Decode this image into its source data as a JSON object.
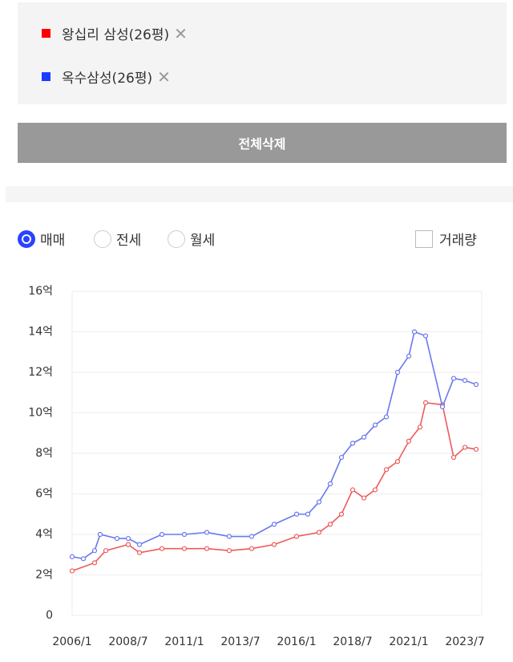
{
  "delete_all_button": "전체삭제",
  "deal_types": [
    "매매",
    "전세",
    "월세"
  ],
  "selected_deal_type": 0,
  "volume_checkbox": "거래량",
  "chart_data": {
    "type": "line",
    "xlim": [
      "2006/1",
      "2024/4"
    ],
    "xticks": [
      "2006/1",
      "2008/7",
      "2011/1",
      "2013/7",
      "2016/1",
      "2018/7",
      "2021/1",
      "2023/7"
    ],
    "ylim": [
      0,
      16
    ],
    "yticks": [
      0,
      {
        "value": 2,
        "label": "2억"
      },
      {
        "value": 4,
        "label": "4억"
      },
      {
        "value": 6,
        "label": "6억"
      },
      {
        "value": 8,
        "label": "8억"
      },
      {
        "value": 10,
        "label": "10억"
      },
      {
        "value": 12,
        "label": "12억"
      },
      {
        "value": 14,
        "label": "14억"
      },
      {
        "value": 16,
        "label": "16억"
      }
    ],
    "grid": true,
    "series": [
      {
        "name": "왕십리 삼성(26평)",
        "color": "#ee5a5a",
        "x": [
          "2006/1",
          "2007/1",
          "2007/7",
          "2008/7",
          "2009/1",
          "2010/1",
          "2011/1",
          "2012/1",
          "2013/1",
          "2014/1",
          "2015/1",
          "2016/1",
          "2017/1",
          "2017/7",
          "2018/1",
          "2018/7",
          "2019/1",
          "2019/7",
          "2020/1",
          "2020/7",
          "2021/1",
          "2021/7",
          "2021/10",
          "2022/7",
          "2023/1",
          "2023/7",
          "2024/1"
        ],
        "values": [
          2.2,
          2.6,
          3.2,
          3.5,
          3.1,
          3.3,
          3.3,
          3.3,
          3.2,
          3.3,
          3.5,
          3.9,
          4.1,
          4.5,
          5.0,
          6.2,
          5.8,
          6.2,
          7.2,
          7.6,
          8.6,
          9.3,
          10.5,
          10.4,
          7.8,
          8.3,
          8.2
        ]
      },
      {
        "name": "옥수삼성(26평)",
        "color": "#6a78ee",
        "x": [
          "2006/1",
          "2006/7",
          "2007/1",
          "2007/4",
          "2008/1",
          "2008/7",
          "2009/1",
          "2010/1",
          "2011/1",
          "2012/1",
          "2013/1",
          "2014/1",
          "2015/1",
          "2016/1",
          "2016/7",
          "2017/1",
          "2017/7",
          "2018/1",
          "2018/7",
          "2019/1",
          "2019/7",
          "2020/1",
          "2020/7",
          "2021/1",
          "2021/4",
          "2021/10",
          "2022/7",
          "2023/1",
          "2023/7",
          "2024/1"
        ],
        "values": [
          2.9,
          2.8,
          3.2,
          4.0,
          3.8,
          3.8,
          3.5,
          4.0,
          4.0,
          4.1,
          3.9,
          3.9,
          4.5,
          5.0,
          5.0,
          5.6,
          6.5,
          7.8,
          8.5,
          8.8,
          9.4,
          9.8,
          12.0,
          12.8,
          14.0,
          13.8,
          10.3,
          11.7,
          11.6,
          11.4
        ]
      }
    ]
  }
}
